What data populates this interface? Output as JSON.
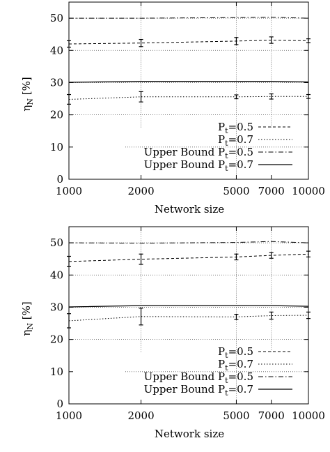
{
  "chart_data": [
    {
      "type": "line",
      "title": "",
      "xlabel": "Network size",
      "ylabel_main": "η",
      "ylabel_sub": "N",
      "ylabel_unit": " [%]",
      "x_scale": "log",
      "x": [
        1000,
        2000,
        5000,
        7000,
        10000
      ],
      "x_tick_labels": [
        "1000",
        "2000",
        "5000",
        "7000",
        "10000"
      ],
      "ylim": [
        0,
        55
      ],
      "y_ticks": [
        0,
        10,
        20,
        30,
        40,
        50
      ],
      "y_tick_labels": [
        "0",
        "10",
        "20",
        "30",
        "40",
        "50"
      ],
      "grid": true,
      "legend_position": "bottom-right",
      "series": [
        {
          "name_main": "P",
          "name_sub": "t",
          "name_tail": "=0.5",
          "style": "dashed",
          "values": [
            42.0,
            42.3,
            42.9,
            43.2,
            43.0
          ],
          "error": [
            1.0,
            1.1,
            1.1,
            1.0,
            0.6
          ]
        },
        {
          "name_main": "P",
          "name_sub": "t",
          "name_tail": "=0.7",
          "style": "dotted",
          "values": [
            24.8,
            25.6,
            25.6,
            25.7,
            25.7
          ],
          "error": [
            1.5,
            1.6,
            0.6,
            0.8,
            0.6
          ]
        },
        {
          "name_main": "Upper Bound P",
          "name_sub": "t",
          "name_tail": "=0.5",
          "style": "dashdot",
          "values": [
            50.0,
            50.0,
            50.2,
            50.3,
            50.0
          ],
          "error": []
        },
        {
          "name_main": "Upper Bound P",
          "name_sub": "t",
          "name_tail": "=0.7",
          "style": "solid",
          "values": [
            30.1,
            30.4,
            30.4,
            30.4,
            30.2
          ],
          "error": []
        }
      ]
    },
    {
      "type": "line",
      "title": "",
      "xlabel": "Network size",
      "ylabel_main": "η",
      "ylabel_sub": "N",
      "ylabel_unit": " [%]",
      "x_scale": "log",
      "x": [
        1000,
        2000,
        5000,
        7000,
        10000
      ],
      "x_tick_labels": [
        "1000",
        "2000",
        "5000",
        "7000",
        "10000"
      ],
      "ylim": [
        0,
        55
      ],
      "y_ticks": [
        0,
        10,
        20,
        30,
        40,
        50
      ],
      "y_tick_labels": [
        "0",
        "10",
        "20",
        "30",
        "40",
        "50"
      ],
      "grid": true,
      "legend_position": "bottom-right",
      "series": [
        {
          "name_main": "P",
          "name_sub": "t",
          "name_tail": "=0.5",
          "style": "dashed",
          "values": [
            44.2,
            44.9,
            45.6,
            46.1,
            46.5
          ],
          "error": [
            1.6,
            1.6,
            0.9,
            0.9,
            0.9
          ]
        },
        {
          "name_main": "P",
          "name_sub": "t",
          "name_tail": "=0.7",
          "style": "dotted",
          "values": [
            25.8,
            27.1,
            27.0,
            27.4,
            27.5
          ],
          "error": [
            2.2,
            2.6,
            0.8,
            1.1,
            1.0
          ]
        },
        {
          "name_main": "Upper Bound P",
          "name_sub": "t",
          "name_tail": "=0.5",
          "style": "dashdot",
          "values": [
            50.0,
            49.9,
            50.1,
            50.4,
            50.0
          ],
          "error": []
        },
        {
          "name_main": "Upper Bound P",
          "name_sub": "t",
          "name_tail": "=0.7",
          "style": "solid",
          "values": [
            30.1,
            30.5,
            30.5,
            30.5,
            30.3
          ],
          "error": []
        }
      ]
    }
  ]
}
